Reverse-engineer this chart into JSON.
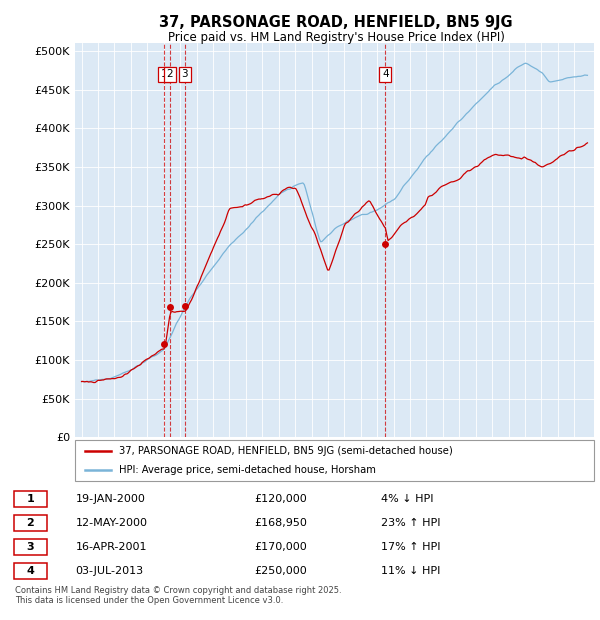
{
  "title": "37, PARSONAGE ROAD, HENFIELD, BN5 9JG",
  "subtitle": "Price paid vs. HM Land Registry's House Price Index (HPI)",
  "legend_line1": "37, PARSONAGE ROAD, HENFIELD, BN5 9JG (semi-detached house)",
  "legend_line2": "HPI: Average price, semi-detached house, Horsham",
  "hpi_color": "#7ab4d8",
  "price_color": "#cc0000",
  "background_color": "#dce9f5",
  "vline_color": "#cc0000",
  "table_entries": [
    {
      "num": 1,
      "date": "19-JAN-2000",
      "price": "£120,000",
      "hpi": "4% ↓ HPI"
    },
    {
      "num": 2,
      "date": "12-MAY-2000",
      "price": "£168,950",
      "hpi": "23% ↑ HPI"
    },
    {
      "num": 3,
      "date": "16-APR-2001",
      "price": "£170,000",
      "hpi": "17% ↑ HPI"
    },
    {
      "num": 4,
      "date": "03-JUL-2013",
      "price": "£250,000",
      "hpi": "11% ↓ HPI"
    }
  ],
  "footer": "Contains HM Land Registry data © Crown copyright and database right 2025.\nThis data is licensed under the Open Government Licence v3.0.",
  "sale_dates": [
    2000.04,
    2000.37,
    2001.29,
    2013.5
  ],
  "sale_prices": [
    120000,
    168950,
    170000,
    250000
  ],
  "sale_labels": [
    1,
    2,
    3,
    4
  ],
  "xstart": 1995.0,
  "xend": 2025.8,
  "ylim_max": 510000
}
